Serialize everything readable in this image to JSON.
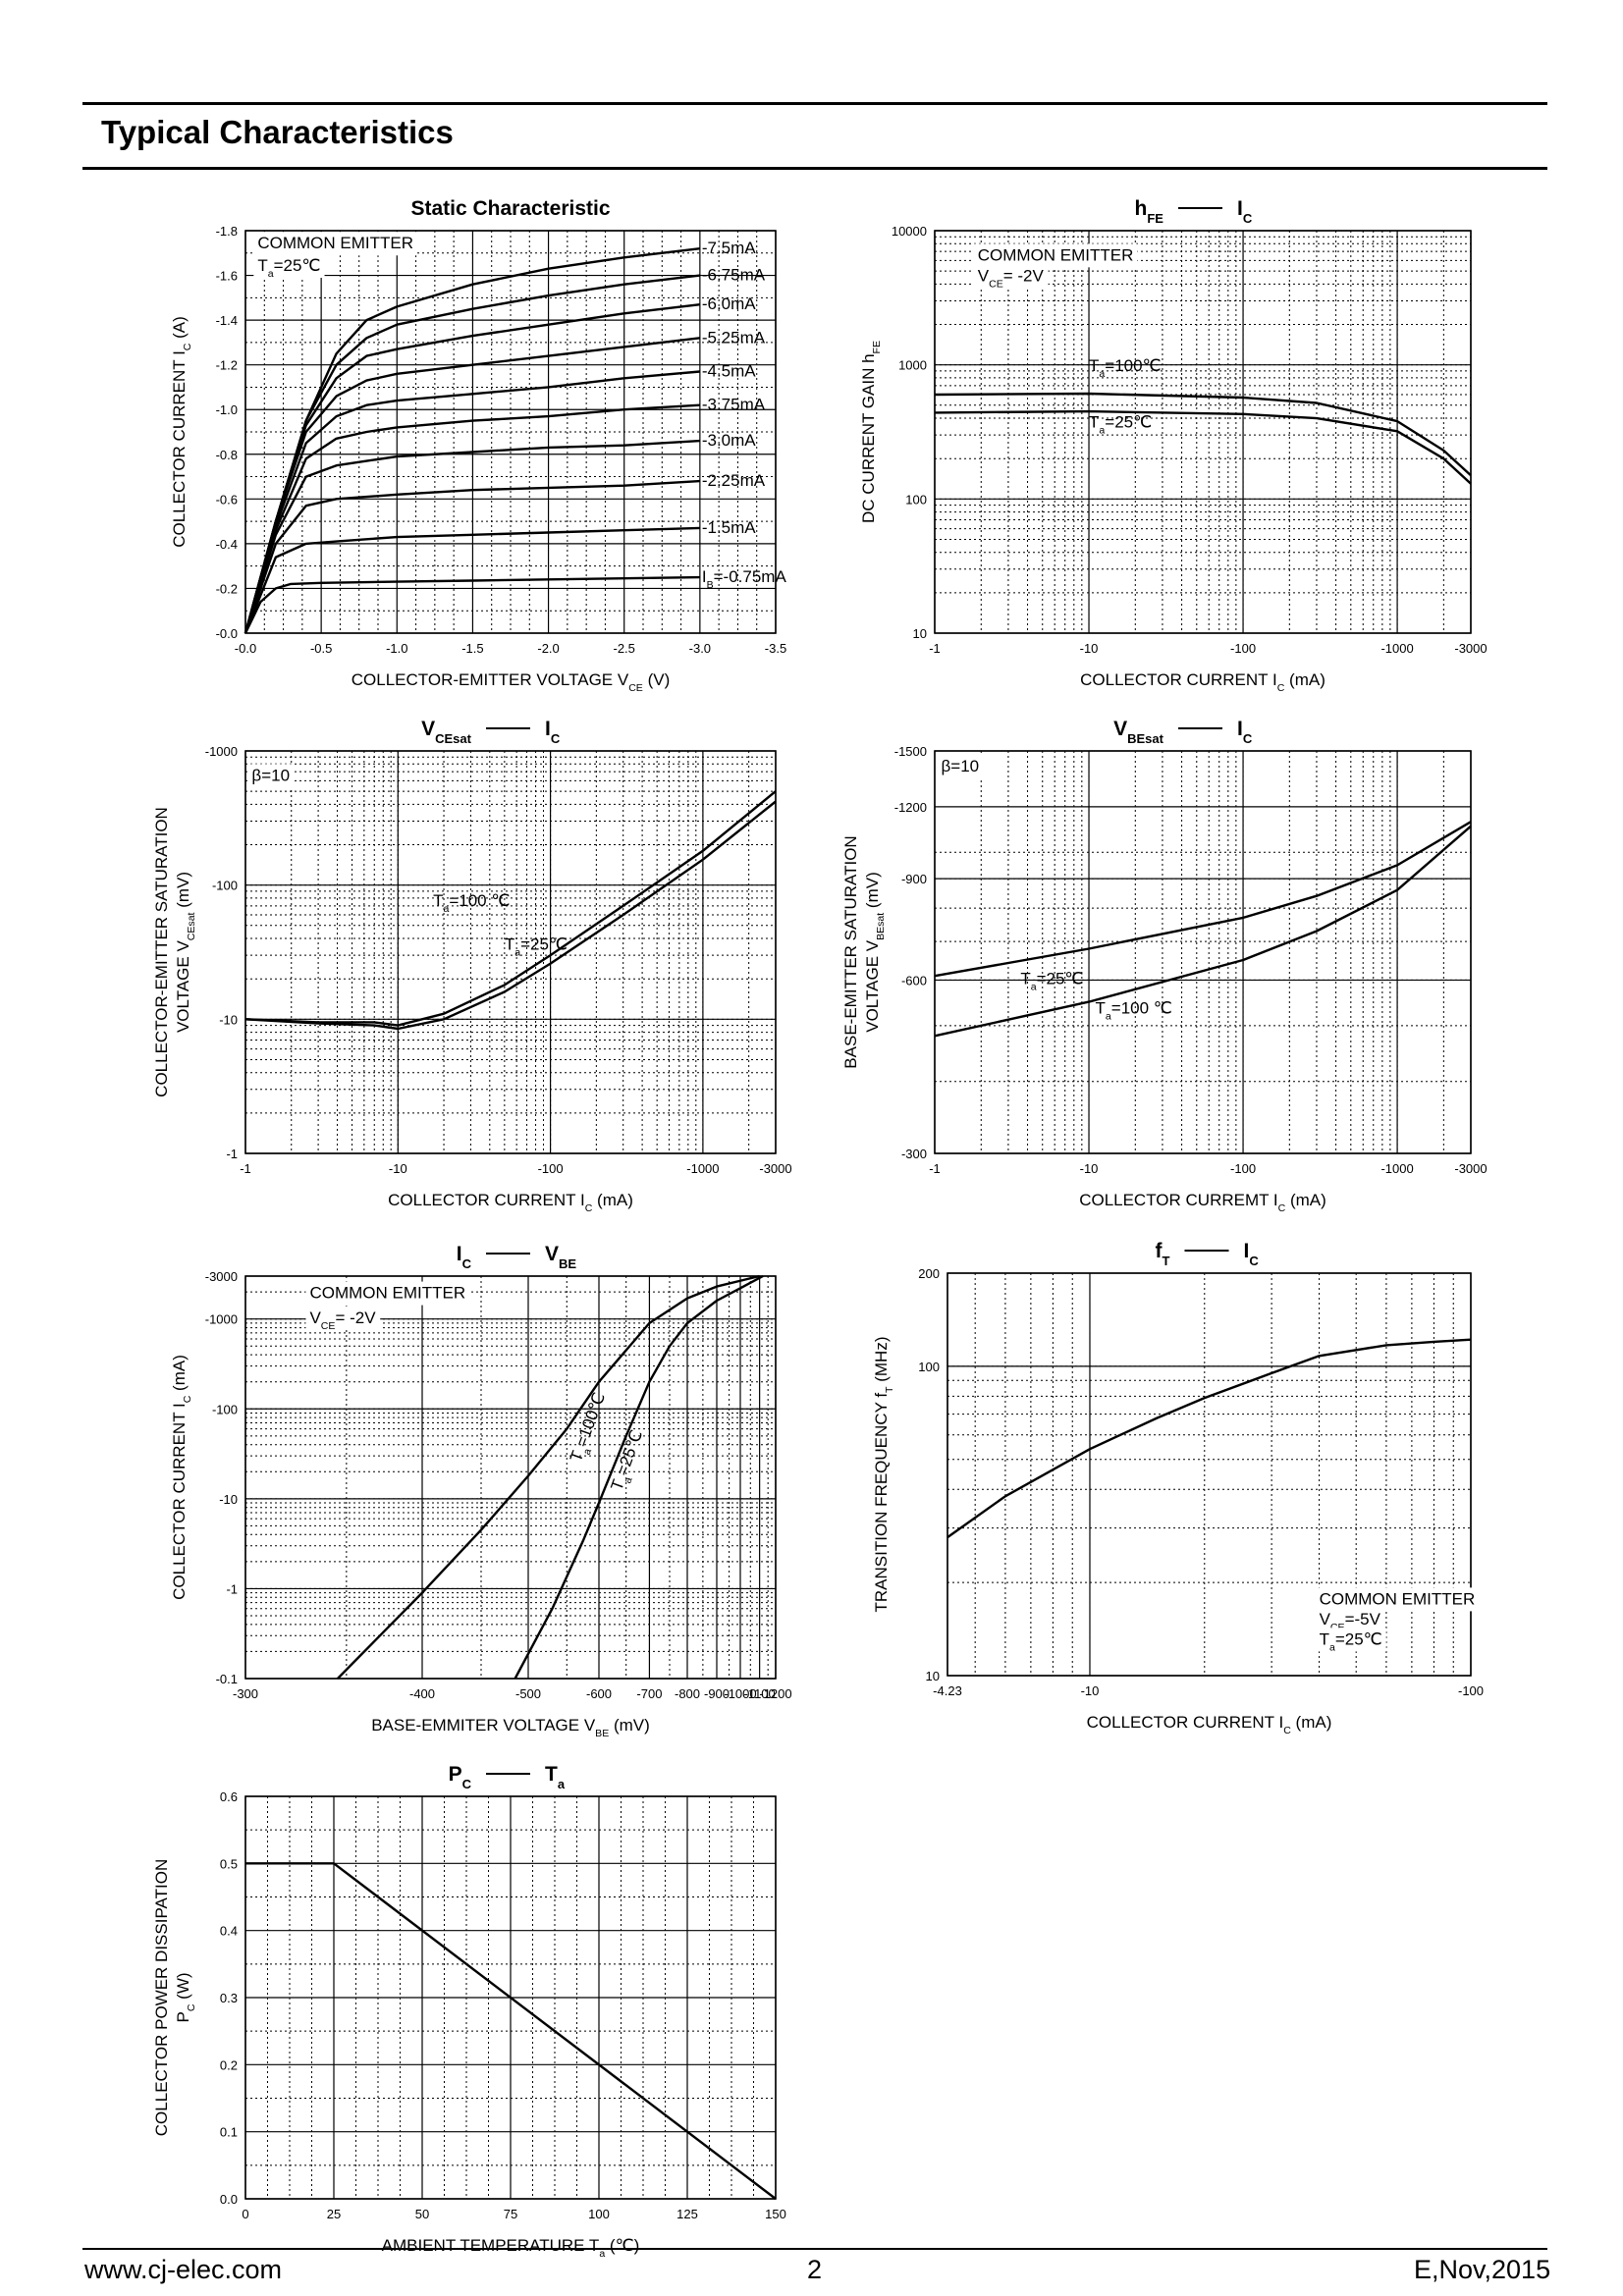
{
  "page": {
    "title": "Typical Characteristics",
    "footer_left": "www.cj-elec.com",
    "footer_center": "2",
    "footer_right": "E,Nov,2015"
  },
  "chart_data": [
    {
      "id": "static",
      "type": "line",
      "title": "Static Characteristic",
      "xlabel": "COLLECTOR-EMITTER VOLTAGE   V",
      "xlabel_sub": "CE",
      "xlabel_unit": "(V)",
      "ylabel": "COLLECTOR CURRENT   I",
      "ylabel_sub": "C",
      "ylabel_unit": "(A)",
      "xscale": "linear",
      "yscale": "linear",
      "xlim": [
        0,
        -3.5
      ],
      "ylim": [
        0,
        -1.8
      ],
      "xticks": [
        0,
        -0.5,
        -1.0,
        -1.5,
        -2.0,
        -2.5,
        -3.0,
        -3.5
      ],
      "xtick_labels": [
        "-0.0",
        "-0.5",
        "-1.0",
        "-1.5",
        "-2.0",
        "-2.5",
        "-3.0",
        "-3.5"
      ],
      "yticks": [
        0,
        -0.2,
        -0.4,
        -0.6,
        -0.8,
        -1.0,
        -1.2,
        -1.4,
        -1.6,
        -1.8
      ],
      "ytick_labels": [
        "-0.0",
        "-0.2",
        "-0.4",
        "-0.6",
        "-0.8",
        "-1.0",
        "-1.2",
        "-1.4",
        "-1.6",
        "-1.8"
      ],
      "grid": true,
      "annotations": [
        {
          "text": "COMMON EMITTER",
          "x": -0.08,
          "y": -1.72
        },
        {
          "text": "T",
          "sub": "a",
          "rest": "=25℃",
          "x": -0.08,
          "y": -1.62
        }
      ],
      "series": [
        {
          "name": "-7.5mA",
          "x": [
            0,
            -0.2,
            -0.4,
            -0.6,
            -0.8,
            -1.0,
            -1.5,
            -2.0,
            -2.5,
            -3.0
          ],
          "y": [
            0,
            -0.5,
            -0.95,
            -1.25,
            -1.4,
            -1.46,
            -1.56,
            -1.63,
            -1.68,
            -1.72
          ]
        },
        {
          "name": "-6.75mA",
          "x": [
            0,
            -0.2,
            -0.4,
            -0.6,
            -0.8,
            -1.0,
            -1.5,
            -2.0,
            -2.5,
            -3.0
          ],
          "y": [
            0,
            -0.5,
            -0.95,
            -1.2,
            -1.32,
            -1.38,
            -1.45,
            -1.51,
            -1.56,
            -1.6
          ]
        },
        {
          "name": "-6.0mA",
          "x": [
            0,
            -0.2,
            -0.4,
            -0.6,
            -0.8,
            -1.0,
            -1.5,
            -2.0,
            -2.5,
            -3.0
          ],
          "y": [
            0,
            -0.5,
            -0.93,
            -1.14,
            -1.24,
            -1.27,
            -1.33,
            -1.38,
            -1.43,
            -1.47
          ]
        },
        {
          "name": "-5.25mA",
          "x": [
            0,
            -0.2,
            -0.4,
            -0.6,
            -0.8,
            -1.0,
            -1.5,
            -2.0,
            -2.5,
            -3.0
          ],
          "y": [
            0,
            -0.5,
            -0.9,
            -1.06,
            -1.13,
            -1.16,
            -1.2,
            -1.24,
            -1.28,
            -1.32
          ]
        },
        {
          "name": "-4.5mA",
          "x": [
            0,
            -0.2,
            -0.4,
            -0.6,
            -0.8,
            -1.0,
            -1.5,
            -2.0,
            -2.5,
            -3.0
          ],
          "y": [
            0,
            -0.48,
            -0.85,
            -0.97,
            -1.02,
            -1.04,
            -1.07,
            -1.1,
            -1.14,
            -1.17
          ]
        },
        {
          "name": "-3.75mA",
          "x": [
            0,
            -0.2,
            -0.4,
            -0.6,
            -0.8,
            -1.0,
            -1.5,
            -2.0,
            -2.5,
            -3.0
          ],
          "y": [
            0,
            -0.46,
            -0.78,
            -0.87,
            -0.9,
            -0.92,
            -0.95,
            -0.97,
            -1.0,
            -1.02
          ]
        },
        {
          "name": "-3.0mA",
          "x": [
            0,
            -0.2,
            -0.4,
            -0.6,
            -0.8,
            -1.0,
            -1.5,
            -2.0,
            -2.5,
            -3.0
          ],
          "y": [
            0,
            -0.44,
            -0.7,
            -0.75,
            -0.77,
            -0.79,
            -0.81,
            -0.83,
            -0.84,
            -0.86
          ]
        },
        {
          "name": "-2.25mA",
          "x": [
            0,
            -0.2,
            -0.4,
            -0.6,
            -0.8,
            -1.0,
            -1.5,
            -2.0,
            -2.5,
            -3.0
          ],
          "y": [
            0,
            -0.4,
            -0.57,
            -0.6,
            -0.61,
            -0.62,
            -0.64,
            -0.65,
            -0.66,
            -0.68
          ]
        },
        {
          "name": "-1.5mA",
          "x": [
            0,
            -0.2,
            -0.4,
            -0.6,
            -0.8,
            -1.0,
            -1.5,
            -2.0,
            -2.5,
            -3.0
          ],
          "y": [
            0,
            -0.34,
            -0.4,
            -0.41,
            -0.42,
            -0.43,
            -0.44,
            -0.45,
            -0.46,
            -0.47
          ]
        },
        {
          "name": "-0.75mA",
          "label_prefix": "I",
          "label_sub": "B",
          "label_rest": "=-0.75mA",
          "x": [
            0,
            -0.1,
            -0.2,
            -0.3,
            -0.5,
            -1.0,
            -1.5,
            -2.0,
            -2.5,
            -3.0
          ],
          "y": [
            0,
            -0.14,
            -0.2,
            -0.22,
            -0.225,
            -0.23,
            -0.235,
            -0.24,
            -0.245,
            -0.25
          ]
        }
      ]
    },
    {
      "id": "hfe",
      "type": "line",
      "title": "h",
      "title_sub": "FE",
      "title_right": "I",
      "title_right_sub": "C",
      "xlabel": "COLLECTOR CURRENT   I",
      "xlabel_sub": "C",
      "xlabel_unit": "(mA)",
      "ylabel": "DC CURRENT GAIN   h",
      "ylabel_sub": "FE",
      "xscale": "log",
      "yscale": "log",
      "xlim": [
        1,
        3000
      ],
      "ylim": [
        10,
        10000
      ],
      "xticks": [
        1,
        10,
        100,
        1000,
        3000
      ],
      "xtick_labels": [
        "-1",
        "-10",
        "-100",
        "-1000",
        "-3000"
      ],
      "yticks": [
        10,
        100,
        1000,
        10000
      ],
      "ytick_labels": [
        "10",
        "100",
        "1000",
        "10000"
      ],
      "grid": true,
      "annotations": [
        {
          "text": "COMMON EMITTER",
          "x": 1.9,
          "y": 6000
        },
        {
          "text": "V",
          "sub": "CE",
          "rest": "= -2V",
          "x": 1.9,
          "y": 4200
        }
      ],
      "series": [
        {
          "name": "T",
          "label_sub": "a",
          "label_rest": "=100℃",
          "label_at": [
            10,
            900
          ],
          "x": [
            1,
            10,
            100,
            300,
            1000,
            2000,
            3000
          ],
          "y": [
            600,
            610,
            570,
            520,
            380,
            230,
            150
          ]
        },
        {
          "name": "T",
          "label_sub": "a",
          "label_rest": "=25℃",
          "label_at": [
            10,
            340
          ],
          "x": [
            1,
            10,
            100,
            300,
            1000,
            2000,
            3000
          ],
          "y": [
            440,
            450,
            430,
            400,
            320,
            200,
            130
          ]
        }
      ]
    },
    {
      "id": "vcesat",
      "type": "line",
      "title": "V",
      "title_sub": "CEsat",
      "title_right": "I",
      "title_right_sub": "C",
      "xlabel": "COLLECTOR CURRENT   I",
      "xlabel_sub": "C",
      "xlabel_unit": "(mA)",
      "ylabel": "COLLECTOR-EMITTER SATURATION",
      "ylabel2": "VOLTAGE   V",
      "ylabel2_sub": "CEsat",
      "ylabel2_unit": "(mV)",
      "xscale": "log",
      "yscale": "log",
      "xlim": [
        1,
        3000
      ],
      "ylim": [
        1,
        1000
      ],
      "xticks": [
        1,
        10,
        100,
        1000,
        3000
      ],
      "xtick_labels": [
        "-1",
        "-10",
        "-100",
        "-1000",
        "-3000"
      ],
      "yticks": [
        1,
        10,
        100,
        1000
      ],
      "ytick_labels": [
        "-1",
        "-10",
        "-100",
        "-1000"
      ],
      "grid": true,
      "annotations": [
        {
          "text": "β=10",
          "x": 1.1,
          "y": 600
        }
      ],
      "series": [
        {
          "name": "T",
          "label_sub": "a",
          "label_rest": "=100 ℃",
          "label_at": [
            17,
            70
          ],
          "x": [
            1,
            3,
            7,
            10,
            20,
            50,
            100,
            300,
            1000,
            3000
          ],
          "y": [
            10,
            9.5,
            9.5,
            9,
            11,
            18,
            30,
            70,
            180,
            500
          ]
        },
        {
          "name": "T",
          "label_sub": "a",
          "label_rest": "=25℃",
          "label_at": [
            50,
            33
          ],
          "x": [
            1,
            3,
            7,
            10,
            20,
            50,
            100,
            300,
            1000,
            3000
          ],
          "y": [
            10,
            9.3,
            9,
            8.5,
            10,
            16,
            26,
            60,
            155,
            420
          ]
        }
      ]
    },
    {
      "id": "vbesat",
      "type": "line",
      "title": "V",
      "title_sub": "BEsat",
      "title_right": "I",
      "title_right_sub": "C",
      "xlabel": "COLLECTOR CURREMT   I",
      "xlabel_sub": "C",
      "xlabel_unit": "(mA)",
      "ylabel": "BASE-EMITTER SATURATION",
      "ylabel2": "VOLTAGE   V",
      "ylabel2_sub": "BEsat",
      "ylabel2_unit": "(mV)",
      "xscale": "log",
      "yscale": "log",
      "xlim": [
        1,
        3000
      ],
      "ylim": [
        300,
        1500
      ],
      "xticks": [
        1,
        10,
        100,
        1000,
        3000
      ],
      "xtick_labels": [
        "-1",
        "-10",
        "-100",
        "-1000",
        "-3000"
      ],
      "yticks": [
        300,
        600,
        900,
        1200,
        1500
      ],
      "ytick_labels": [
        "-300",
        "-600",
        "-900",
        "-1200",
        "-1500"
      ],
      "grid": true,
      "annotations": [
        {
          "text": "β=10",
          "x": 1.1,
          "y": 1380
        }
      ],
      "series": [
        {
          "name": "T",
          "label_sub": "a",
          "label_rest": "=25℃",
          "label_at": [
            3.6,
            590
          ],
          "x": [
            1,
            10,
            100,
            300,
            1000,
            3000
          ],
          "y": [
            610,
            680,
            770,
            840,
            950,
            1130
          ]
        },
        {
          "name": "T",
          "label_sub": "a",
          "label_rest": "=100 ℃",
          "label_at": [
            11,
            525
          ],
          "x": [
            1,
            10,
            100,
            300,
            1000,
            3000
          ],
          "y": [
            480,
            550,
            650,
            730,
            860,
            1110
          ]
        }
      ]
    },
    {
      "id": "icvbe",
      "type": "line",
      "title": "I",
      "title_sub": "C",
      "title_right": "V",
      "title_right_sub": "BE",
      "xlabel": "BASE-EMMITER VOLTAGE   V",
      "xlabel_sub": "BE",
      "xlabel_unit": "(mV)",
      "ylabel": "COLLECTOR CURRENT   I",
      "ylabel_sub": "C",
      "ylabel_unit": "(mA)",
      "xscale": "reciprocal",
      "yscale": "log",
      "xlim": [
        300,
        1200
      ],
      "ylim": [
        0.1,
        3000
      ],
      "xticks": [
        300,
        400,
        500,
        600,
        700,
        800,
        900,
        1000,
        1100,
        1200
      ],
      "xtick_labels": [
        "-300",
        "-400",
        "-500",
        "-600",
        "-700",
        "-800",
        "-900",
        "-1000",
        "-1100",
        "-1200"
      ],
      "yticks": [
        0.1,
        1,
        10,
        100,
        1000,
        3000
      ],
      "ytick_labels": [
        "-0.1",
        "-1",
        "-10",
        "-100",
        "-1000",
        "-3000"
      ],
      "grid": true,
      "annotations": [
        {
          "text": "COMMON EMITTER",
          "x": 330,
          "y": 1700
        },
        {
          "text": "V",
          "sub": "CE",
          "rest": "= -2V",
          "x": 330,
          "y": 900
        }
      ],
      "series": [
        {
          "name": "T",
          "label_sub": "a",
          "label_rest": "=100℃",
          "label_at": [
            570,
            25
          ],
          "label_rotate": -70,
          "x": [
            345,
            400,
            450,
            500,
            550,
            600,
            650,
            700,
            800,
            900,
            1100
          ],
          "y": [
            0.1,
            0.9,
            4.5,
            18,
            60,
            200,
            450,
            900,
            1700,
            2300,
            3000
          ]
        },
        {
          "name": "T",
          "label_sub": "a",
          "label_rest": "=25℃",
          "label_at": [
            640,
            12
          ],
          "label_rotate": -70,
          "x": [
            485,
            530,
            575,
            600,
            650,
            700,
            750,
            800,
            900,
            1000,
            1120
          ],
          "y": [
            0.1,
            0.6,
            3.5,
            9,
            50,
            200,
            500,
            900,
            1600,
            2200,
            3000
          ]
        }
      ]
    },
    {
      "id": "ft",
      "type": "line",
      "title": "f",
      "title_sub": "T",
      "title_right": "I",
      "title_right_sub": "C",
      "xlabel": "COLLECTOR CURRENT   I",
      "xlabel_sub": "C",
      "xlabel_unit": "(mA)",
      "ylabel": "TRANSITION FREQUENCY   f",
      "ylabel_sub": "T",
      "ylabel_unit": "(MHz)",
      "xscale": "log",
      "yscale": "log",
      "xlim": [
        4.23,
        100
      ],
      "ylim": [
        10,
        200
      ],
      "xticks": [
        4.23,
        10,
        100
      ],
      "xtick_labels": [
        "-4.23",
        "-10",
        "-100"
      ],
      "yticks": [
        10,
        100,
        200
      ],
      "ytick_labels": [
        "10",
        "100",
        "200"
      ],
      "grid": true,
      "annotations": [
        {
          "text": "COMMON EMITTER",
          "x": 40,
          "y": 17
        },
        {
          "text": "V",
          "sub": "CE",
          "rest": "=-5V",
          "x": 40,
          "y": 14.6
        },
        {
          "text": "T",
          "sub": "a",
          "rest": "=25℃",
          "x": 40,
          "y": 12.6
        }
      ],
      "series": [
        {
          "name": "",
          "x": [
            4.23,
            6,
            10,
            15,
            20,
            30,
            40,
            60,
            80,
            100
          ],
          "y": [
            28,
            38,
            54,
            68,
            79,
            95,
            108,
            117,
            120,
            122
          ]
        }
      ]
    },
    {
      "id": "pcta",
      "type": "line",
      "title": "P",
      "title_sub": "C",
      "title_right": "T",
      "title_right_sub": "a",
      "xlabel": "AMBIENT TEMPERATURE   T",
      "xlabel_sub": "a",
      "xlabel_unit": "(℃)",
      "ylabel": "COLLECTOR POWER DISSIPATION",
      "ylabel2": "P",
      "ylabel2_sub": "C",
      "ylabel2_unit": "(W)",
      "xscale": "linear",
      "yscale": "linear",
      "xlim": [
        0,
        150
      ],
      "ylim": [
        0,
        0.6
      ],
      "xticks": [
        0,
        25,
        50,
        75,
        100,
        125,
        150
      ],
      "xtick_labels": [
        "0",
        "25",
        "50",
        "75",
        "100",
        "125",
        "150"
      ],
      "yticks": [
        0,
        0.1,
        0.2,
        0.3,
        0.4,
        0.5,
        0.6
      ],
      "ytick_labels": [
        "0.0",
        "0.1",
        "0.2",
        "0.3",
        "0.4",
        "0.5",
        "0.6"
      ],
      "grid": true,
      "series": [
        {
          "name": "",
          "x": [
            0,
            25,
            150
          ],
          "y": [
            0.5,
            0.5,
            0
          ]
        }
      ]
    }
  ]
}
